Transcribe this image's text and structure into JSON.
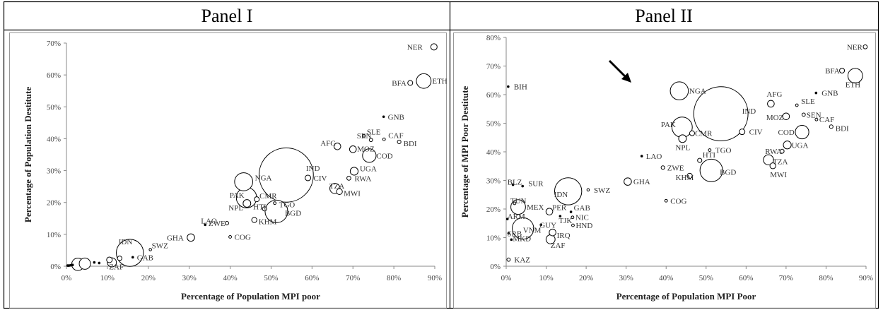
{
  "figure": {
    "panel_titles": [
      "Panel I",
      "Panel II"
    ]
  },
  "chart_data": [
    {
      "type": "scatter",
      "title": "Panel I",
      "xlabel": "Percentage of Population MPI poor",
      "ylabel": "Percentage of Population Destitute",
      "xlim": [
        0,
        90
      ],
      "ylim": [
        0,
        70
      ],
      "x_ticks": [
        "0%",
        "10%",
        "20%",
        "30%",
        "40%",
        "50%",
        "60%",
        "70%",
        "80%",
        "90%"
      ],
      "y_ticks": [
        "0%",
        "10%",
        "20%",
        "30%",
        "40%",
        "50%",
        "60%",
        "70%"
      ],
      "grid": false,
      "bubble_size": "population",
      "points": [
        {
          "label": "NER",
          "x": 89.8,
          "y": 68.8,
          "size": 2.8
        },
        {
          "label": "BFA",
          "x": 84.0,
          "y": 57.5,
          "size": 2.2
        },
        {
          "label": "ETH",
          "x": 87.3,
          "y": 58.1,
          "size": 6.5
        },
        {
          "label": "GNB",
          "x": 77.5,
          "y": 46.9,
          "size": 1.0
        },
        {
          "label": "SLE",
          "x": 72.7,
          "y": 40.9,
          "size": 1.2
        },
        {
          "label": "SEN",
          "x": 74.4,
          "y": 39.6,
          "size": 1.5
        },
        {
          "label": "CAF",
          "x": 77.6,
          "y": 39.8,
          "size": 1.2
        },
        {
          "label": "BDI",
          "x": 81.3,
          "y": 39.0,
          "size": 1.6
        },
        {
          "label": "AFG",
          "x": 66.2,
          "y": 37.6,
          "size": 3.0
        },
        {
          "label": "MOZ",
          "x": 70.0,
          "y": 36.7,
          "size": 3.0
        },
        {
          "label": "COD",
          "x": 74.0,
          "y": 34.7,
          "size": 6.0
        },
        {
          "label": "IND",
          "x": 53.7,
          "y": 28.6,
          "size": 24.0
        },
        {
          "label": "NGA",
          "x": 43.3,
          "y": 26.5,
          "size": 8.0
        },
        {
          "label": "CIV",
          "x": 59.0,
          "y": 27.7,
          "size": 2.5
        },
        {
          "label": "UGA",
          "x": 70.3,
          "y": 29.8,
          "size": 3.5
        },
        {
          "label": "RWA",
          "x": 69.0,
          "y": 27.6,
          "size": 1.8
        },
        {
          "label": "TZA",
          "x": 65.6,
          "y": 24.4,
          "size": 4.5
        },
        {
          "label": "MWI",
          "x": 66.7,
          "y": 23.4,
          "size": 2.6
        },
        {
          "label": "PAK",
          "x": 44.0,
          "y": 21.5,
          "size": 9.0
        },
        {
          "label": "CMR",
          "x": 46.5,
          "y": 21.0,
          "size": 2.2
        },
        {
          "label": "TGO",
          "x": 50.9,
          "y": 19.8,
          "size": 1.2
        },
        {
          "label": "NPL",
          "x": 44.1,
          "y": 19.7,
          "size": 3.4
        },
        {
          "label": "HTI",
          "x": 48.4,
          "y": 18.0,
          "size": 1.9
        },
        {
          "label": "BGD",
          "x": 51.3,
          "y": 17.2,
          "size": 10.0
        },
        {
          "label": "KHM",
          "x": 45.9,
          "y": 14.5,
          "size": 2.3
        },
        {
          "label": "LAO",
          "x": 33.9,
          "y": 13.0,
          "size": 1.0
        },
        {
          "label": "ZWE",
          "x": 39.2,
          "y": 13.5,
          "size": 1.6
        },
        {
          "label": "GHA",
          "x": 30.4,
          "y": 9.0,
          "size": 3.3
        },
        {
          "label": "COG",
          "x": 40.0,
          "y": 9.2,
          "size": 1.2
        },
        {
          "label": "IDN",
          "x": 15.5,
          "y": 4.2,
          "size": 12.0
        },
        {
          "label": "SWZ",
          "x": 20.5,
          "y": 5.2,
          "size": 1.1
        },
        {
          "label": "GAB",
          "x": 16.2,
          "y": 2.8,
          "size": 1.0
        },
        {
          "label": "ZAF",
          "x": 11.1,
          "y": 1.2,
          "size": 4.0
        },
        {
          "x": 2.8,
          "y": 0.6,
          "size": 5.5
        },
        {
          "x": 4.5,
          "y": 0.8,
          "size": 5.0
        },
        {
          "x": 10.5,
          "y": 2.0,
          "size": 2.5
        },
        {
          "x": 13.0,
          "y": 2.5,
          "size": 2.0
        },
        {
          "x": 6.8,
          "y": 1.2,
          "size": 1.0
        },
        {
          "x": 8.0,
          "y": 1.0,
          "size": 1.0
        },
        {
          "x": 0.3,
          "y": 0.2,
          "size": 1.0
        },
        {
          "x": 0.6,
          "y": 0.2,
          "size": 1.0
        },
        {
          "x": 1.0,
          "y": 0.3,
          "size": 1.0
        },
        {
          "x": 1.5,
          "y": 0.4,
          "size": 1.0
        }
      ]
    },
    {
      "type": "scatter",
      "title": "Panel II",
      "xlabel": "Percentage of Population MPI Poor",
      "ylabel": "Percentage of MPI Poor Destitute",
      "xlim": [
        0,
        90
      ],
      "ylim": [
        0,
        80
      ],
      "x_ticks": [
        "0%",
        "10%",
        "20%",
        "30%",
        "40%",
        "50%",
        "60%",
        "70%",
        "80%",
        "90%"
      ],
      "y_ticks": [
        "0%",
        "10%",
        "20%",
        "30%",
        "40%",
        "50%",
        "60%",
        "70%",
        "80%"
      ],
      "grid": false,
      "bubble_size": "population",
      "annotation": "arrow pointing to AFG",
      "points": [
        {
          "label": "NER",
          "x": 89.8,
          "y": 76.7,
          "size": 1.8
        },
        {
          "label": "BFA",
          "x": 84.0,
          "y": 68.4,
          "size": 2.2
        },
        {
          "label": "ETH",
          "x": 87.3,
          "y": 66.6,
          "size": 6.5
        },
        {
          "label": "GNB",
          "x": 77.5,
          "y": 60.6,
          "size": 1.0
        },
        {
          "label": "AFG",
          "x": 66.2,
          "y": 56.8,
          "size": 3.0
        },
        {
          "label": "SLE",
          "x": 72.7,
          "y": 56.3,
          "size": 1.2
        },
        {
          "label": "BIH",
          "x": 0.5,
          "y": 62.8,
          "size": 1.0
        },
        {
          "label": "NGA",
          "x": 43.3,
          "y": 61.3,
          "size": 8.0
        },
        {
          "label": "IND",
          "x": 53.7,
          "y": 53.3,
          "size": 24.0
        },
        {
          "label": "SEN",
          "x": 74.4,
          "y": 53.0,
          "size": 1.5
        },
        {
          "label": "MOZ",
          "x": 70.0,
          "y": 52.4,
          "size": 3.0
        },
        {
          "label": "CAF",
          "x": 77.6,
          "y": 51.3,
          "size": 1.2
        },
        {
          "label": "BDI",
          "x": 81.3,
          "y": 48.8,
          "size": 1.6
        },
        {
          "label": "PAK",
          "x": 44.0,
          "y": 48.6,
          "size": 9.0
        },
        {
          "label": "CMR",
          "x": 46.5,
          "y": 46.5,
          "size": 2.2
        },
        {
          "label": "CIV",
          "x": 59.0,
          "y": 47.0,
          "size": 2.5
        },
        {
          "label": "COD",
          "x": 74.0,
          "y": 46.9,
          "size": 6.0
        },
        {
          "label": "NPL",
          "x": 44.1,
          "y": 44.6,
          "size": 3.4
        },
        {
          "label": "UGA",
          "x": 70.3,
          "y": 42.4,
          "size": 3.5
        },
        {
          "label": "RWA",
          "x": 69.0,
          "y": 40.2,
          "size": 1.8
        },
        {
          "label": "TGO",
          "x": 50.9,
          "y": 40.6,
          "size": 1.2
        },
        {
          "label": "LAO",
          "x": 33.9,
          "y": 38.5,
          "size": 1.0
        },
        {
          "label": "TZA",
          "x": 65.6,
          "y": 37.2,
          "size": 4.5
        },
        {
          "label": "HTI",
          "x": 48.4,
          "y": 37.0,
          "size": 1.9
        },
        {
          "label": "MWI",
          "x": 66.7,
          "y": 35.1,
          "size": 2.6
        },
        {
          "label": "ZWE",
          "x": 39.2,
          "y": 34.5,
          "size": 1.6
        },
        {
          "label": "BGD",
          "x": 51.3,
          "y": 33.5,
          "size": 10.0
        },
        {
          "label": "KHM",
          "x": 45.9,
          "y": 31.6,
          "size": 2.3
        },
        {
          "label": "GHA",
          "x": 30.4,
          "y": 29.6,
          "size": 3.3
        },
        {
          "label": "BLZ",
          "x": 1.7,
          "y": 28.5,
          "size": 1.0
        },
        {
          "label": "SUR",
          "x": 4.1,
          "y": 28.0,
          "size": 1.0
        },
        {
          "label": "SWZ",
          "x": 20.5,
          "y": 26.7,
          "size": 1.1
        },
        {
          "label": "IDN",
          "x": 15.5,
          "y": 26.2,
          "size": 12.0
        },
        {
          "label": "COG",
          "x": 40.0,
          "y": 22.9,
          "size": 1.2
        },
        {
          "label": "TUN",
          "x": 2.1,
          "y": 22.0,
          "size": 1.2
        },
        {
          "label": "MEX",
          "x": 3.0,
          "y": 20.7,
          "size": 6.5
        },
        {
          "label": "PER",
          "x": 10.8,
          "y": 19.1,
          "size": 3.0
        },
        {
          "label": "GAB",
          "x": 16.2,
          "y": 19.0,
          "size": 1.0
        },
        {
          "label": "TJK",
          "x": 13.5,
          "y": 17.5,
          "size": 1.0
        },
        {
          "label": "NIC",
          "x": 16.6,
          "y": 17.1,
          "size": 1.2
        },
        {
          "label": "ARM",
          "x": 0.3,
          "y": 16.5,
          "size": 1.0
        },
        {
          "label": "GUY",
          "x": 8.7,
          "y": 14.5,
          "size": 1.0
        },
        {
          "label": "HND",
          "x": 16.7,
          "y": 14.3,
          "size": 1.2
        },
        {
          "label": "VNM",
          "x": 4.2,
          "y": 13.2,
          "size": 9.5
        },
        {
          "label": "SRB",
          "x": 0.6,
          "y": 11.5,
          "size": 1.0
        },
        {
          "label": "IRQ",
          "x": 11.6,
          "y": 11.8,
          "size": 3.0
        },
        {
          "label": "MKD",
          "x": 1.3,
          "y": 9.3,
          "size": 1.0
        },
        {
          "label": "ZAF",
          "x": 11.1,
          "y": 9.4,
          "size": 4.0
        },
        {
          "label": "KAZ",
          "x": 0.6,
          "y": 2.3,
          "size": 1.5
        }
      ]
    }
  ]
}
